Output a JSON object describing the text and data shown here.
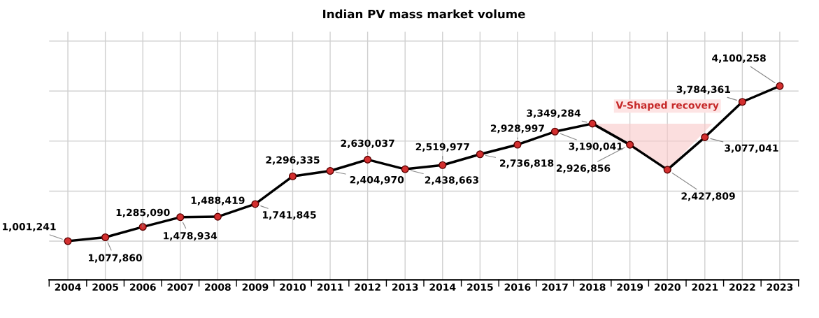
{
  "chart_data": {
    "type": "line",
    "title": "Indian PV mass market volume",
    "categories": [
      "2004",
      "2005",
      "2006",
      "2007",
      "2008",
      "2009",
      "2010",
      "2011",
      "2012",
      "2013",
      "2014",
      "2015",
      "2016",
      "2017",
      "2018",
      "2019",
      "2020",
      "2021",
      "2022",
      "2023"
    ],
    "series": [
      {
        "color": "#000000",
        "values": [
          1001241,
          1077860,
          1285090,
          1478934,
          1488419,
          1741845,
          2296335,
          2404970,
          2630037,
          2438663,
          2519977,
          2736818,
          2928997,
          3190041,
          3349284,
          2926856,
          2427809,
          3077041,
          3784361,
          4100258
        ],
        "value_labels": [
          "1,001,241",
          "1,077,860",
          "1,285,090",
          "1,478,934",
          "1,488,419",
          "1,741,845",
          "2,296,335",
          "2,404,970",
          "2,630,037",
          "2,438,663",
          "2,519,977",
          "2,736,818",
          "2,928,997",
          "3,190,041",
          "3,349,284",
          "2,926,856",
          "2,427,809",
          "3,077,041",
          "3,784,361",
          "4,100,258"
        ]
      }
    ],
    "marker": "circle",
    "grid": true,
    "legend": false,
    "tick_labels": "x",
    "annotations": [
      "V-Shaped recovery"
    ]
  }
}
